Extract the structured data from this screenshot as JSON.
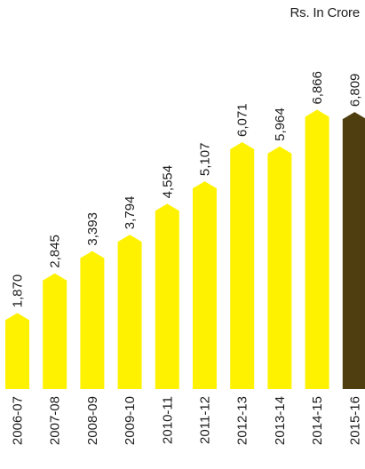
{
  "chart_data": {
    "type": "bar",
    "unit_label": "Rs. In Crore",
    "categories": [
      "2006-07",
      "2007-08",
      "2008-09",
      "2009-10",
      "2010-11",
      "2011-12",
      "2012-13",
      "2013-14",
      "2014-15",
      "2015-16"
    ],
    "values": [
      1870,
      2845,
      3393,
      3794,
      4554,
      5107,
      6071,
      5964,
      6866,
      6809
    ],
    "value_labels": [
      "1,870",
      "2,845",
      "3,393",
      "3,794",
      "4,554",
      "5,107",
      "6,071",
      "5,964",
      "6,866",
      "6,809"
    ],
    "colors": {
      "bar": "#FFF200",
      "highlight_bar": "#4F3E0F",
      "text": "#1c1c1c"
    },
    "highlight_index": 9,
    "bar_shape": "arrow-top",
    "labels_rotated": true,
    "grid": false,
    "legend": "none"
  }
}
